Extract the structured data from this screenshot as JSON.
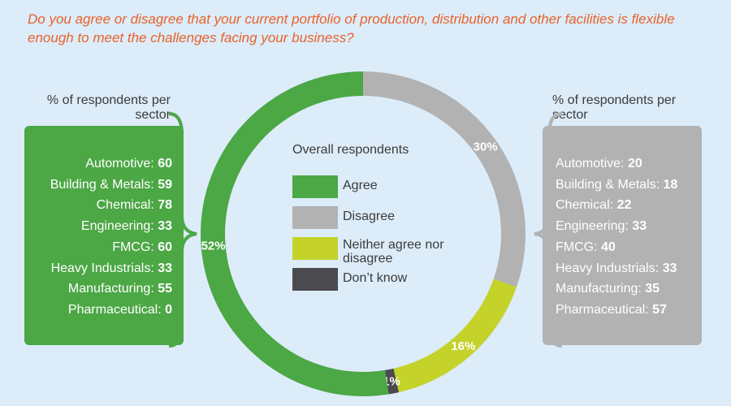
{
  "question": "Do you agree or disagree that your current portfolio of production, distribution and other facilities is flexible enough to meet the challenges facing your business?",
  "left_panel": {
    "header": "% of respondents per sector",
    "color": "#4ca745",
    "rows": [
      {
        "label": "Automotive: ",
        "value": "60"
      },
      {
        "label": "Building & Metals: ",
        "value": "59"
      },
      {
        "label": "Chemical: ",
        "value": "78"
      },
      {
        "label": "Engineering: ",
        "value": "33"
      },
      {
        "label": "FMCG: ",
        "value": "60"
      },
      {
        "label": "Heavy Industrials: ",
        "value": "33"
      },
      {
        "label": "Manufacturing: ",
        "value": "55"
      },
      {
        "label": "Pharmaceutical: ",
        "value": "0"
      }
    ]
  },
  "right_panel": {
    "header": "% of respondents per sector",
    "color": "#b2b2b2",
    "rows": [
      {
        "label": "Automotive: ",
        "value": "20"
      },
      {
        "label": "Building & Metals: ",
        "value": "18"
      },
      {
        "label": "Chemical: ",
        "value": "22"
      },
      {
        "label": "Engineering: ",
        "value": "33"
      },
      {
        "label": "FMCG: ",
        "value": "40"
      },
      {
        "label": "Heavy Industrials: ",
        "value": "33"
      },
      {
        "label": "Manufacturing: ",
        "value": "35"
      },
      {
        "label": "Pharmaceutical: ",
        "value": "57"
      }
    ]
  },
  "chart_data": {
    "type": "pie",
    "title": "Overall respondents",
    "categories": [
      "Agree",
      "Disagree",
      "Neither agree nor disagree",
      "Don’t know"
    ],
    "values": [
      52,
      30,
      16,
      1
    ],
    "value_labels": [
      "52%",
      "30%",
      "16%",
      "1%"
    ],
    "colors": [
      "#4ca745",
      "#b2b2b2",
      "#c4d22a",
      "#4a4a4f"
    ],
    "legend_position": "center"
  }
}
